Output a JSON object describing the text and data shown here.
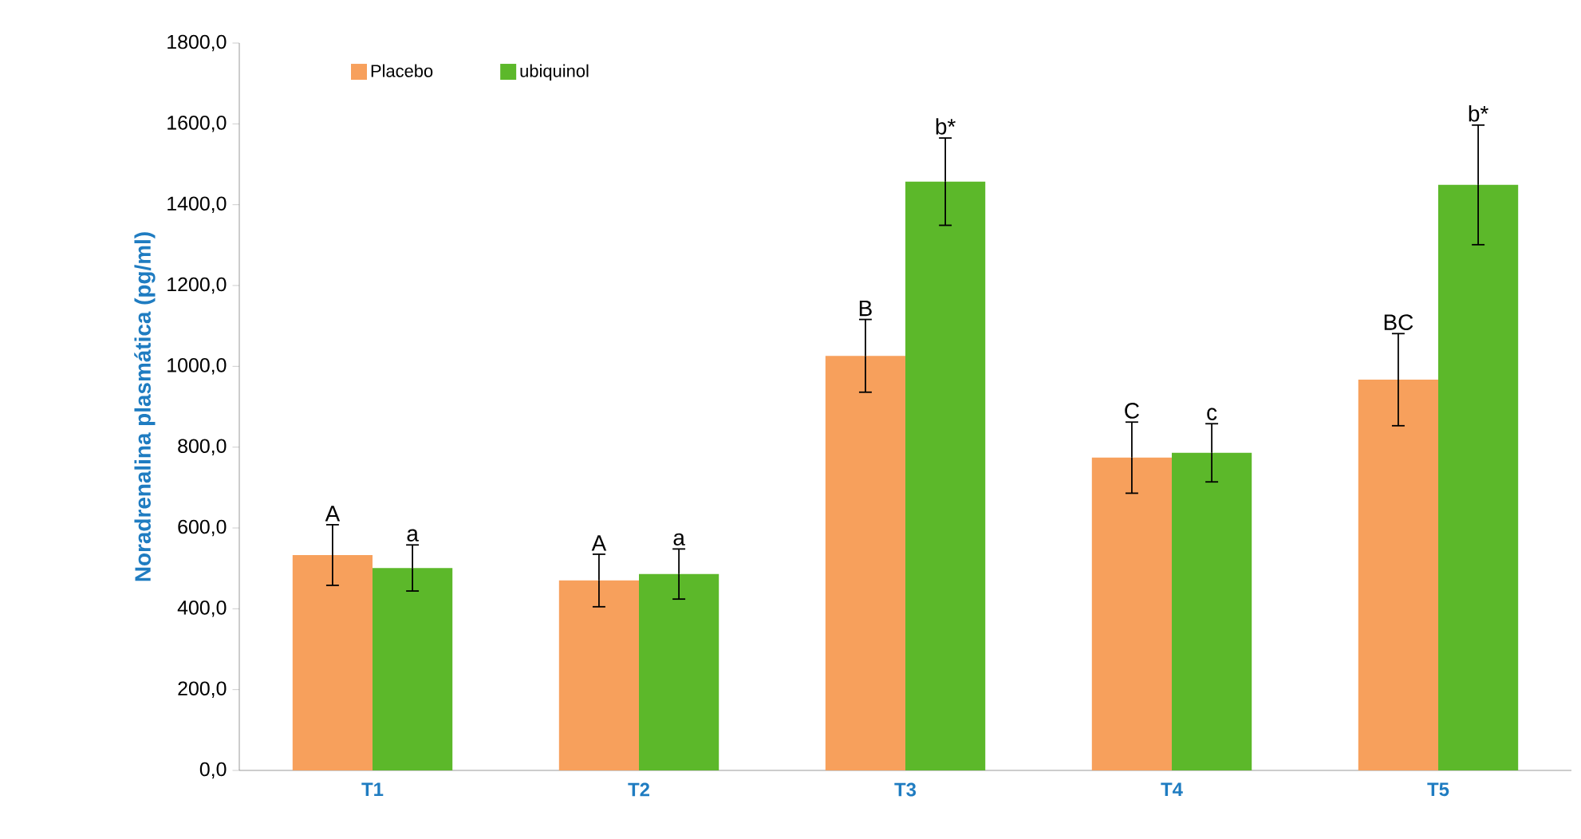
{
  "chart_data": {
    "type": "bar",
    "ylabel": "Noradrenalina plasmática (pg/ml)",
    "categories": [
      "T1",
      "T2",
      "T3",
      "T4",
      "T5"
    ],
    "series": [
      {
        "name": "Placebo",
        "color": "#f7a05c",
        "values": [
          533,
          470,
          1026,
          774,
          967
        ],
        "errors": [
          75,
          65,
          90,
          88,
          114
        ],
        "value_labels": [
          "A",
          "A",
          "B",
          "C",
          "BC"
        ]
      },
      {
        "name": "ubiquinol",
        "color": "#5cb82a",
        "values": [
          501,
          486,
          1457,
          786,
          1449
        ],
        "errors": [
          57,
          62,
          108,
          72,
          148
        ],
        "value_labels": [
          "a",
          "a",
          "b*",
          "c",
          "b*"
        ]
      }
    ],
    "ylim": [
      0,
      1800
    ],
    "yticks": [
      {
        "value": 0,
        "label": "0,0"
      },
      {
        "value": 200,
        "label": "200,0"
      },
      {
        "value": 400,
        "label": "400,0"
      },
      {
        "value": 600,
        "label": "600,0"
      },
      {
        "value": 800,
        "label": "800,0"
      },
      {
        "value": 1000,
        "label": "1000,0"
      },
      {
        "value": 1200,
        "label": "1200,0"
      },
      {
        "value": 1400,
        "label": "1400,0"
      },
      {
        "value": 1600,
        "label": "1600,0"
      },
      {
        "value": 1800,
        "label": "1800,0"
      }
    ],
    "legend": "top left"
  }
}
